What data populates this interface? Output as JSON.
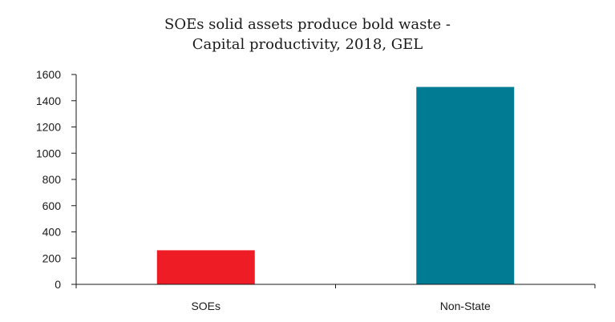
{
  "chart_data": {
    "type": "bar",
    "title_lines": [
      "SOEs solid assets produce bold waste -",
      "Capital productivity, 2018, GEL"
    ],
    "categories": [
      "SOEs",
      "Non-State"
    ],
    "values": [
      260,
      1505
    ],
    "colors": [
      "#ee1c25",
      "#007b94"
    ],
    "ylim": [
      0,
      1600
    ],
    "yticks": [
      0,
      200,
      400,
      600,
      800,
      1000,
      1200,
      1400,
      1600
    ],
    "grid": false,
    "axis_color": "#1a1a1a"
  }
}
